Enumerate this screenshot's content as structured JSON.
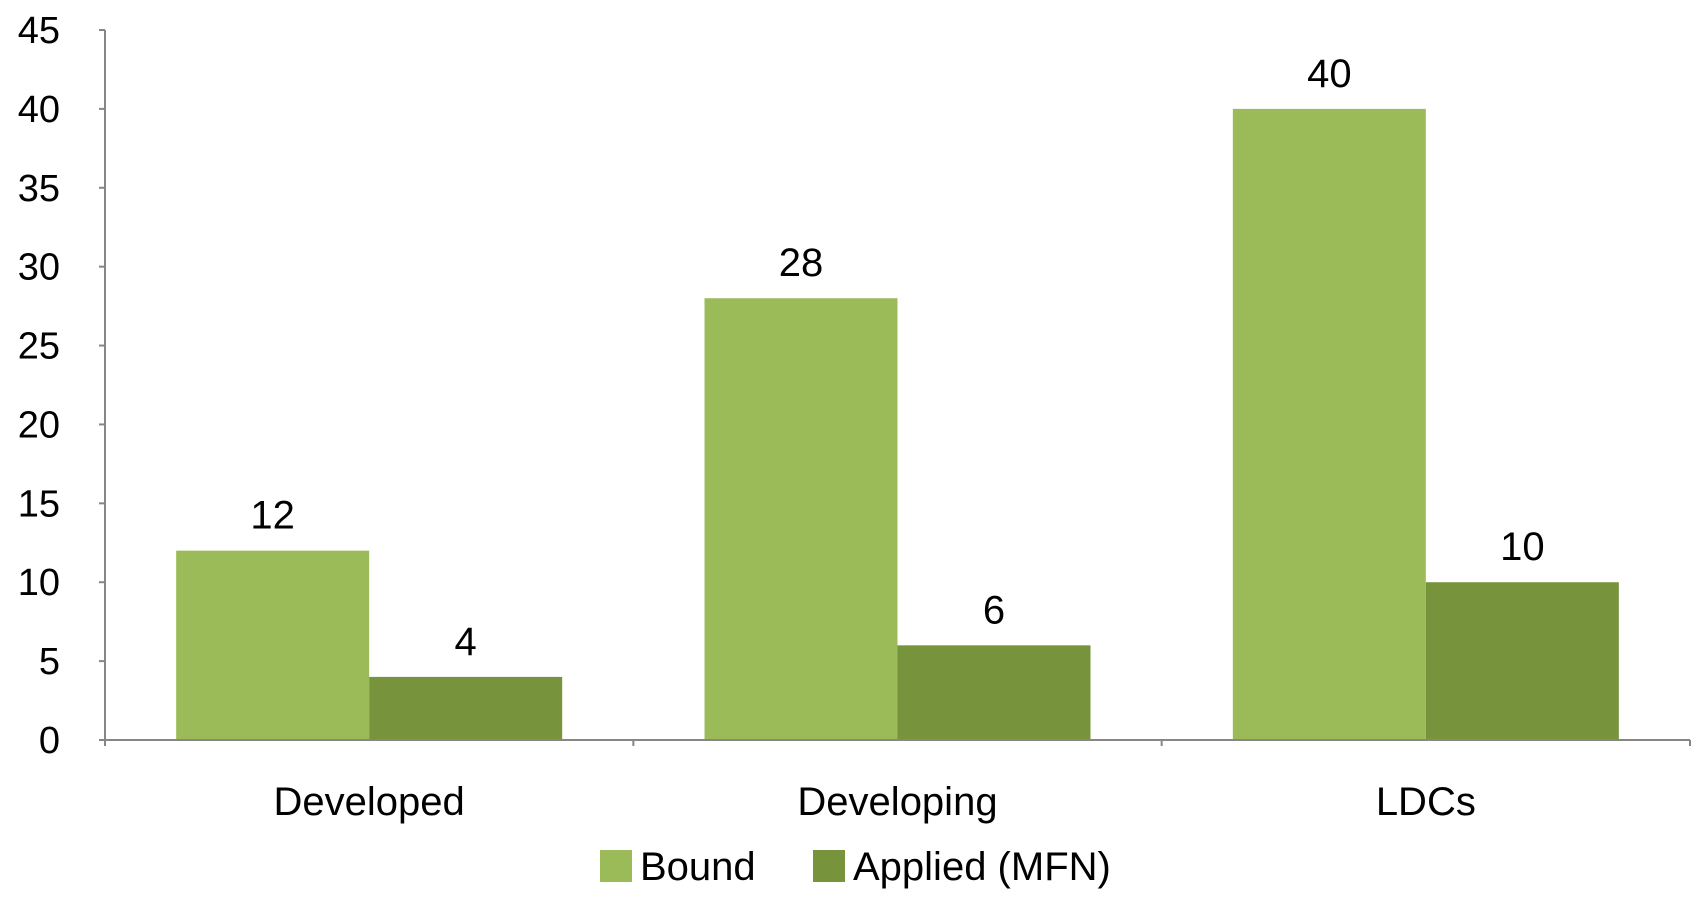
{
  "chart_data": {
    "type": "bar",
    "categories": [
      "Developed",
      "Developing",
      "LDCs"
    ],
    "series": [
      {
        "name": "Bound",
        "values": [
          12,
          28,
          40
        ],
        "color": "#9bbb59"
      },
      {
        "name": "Applied (MFN)",
        "values": [
          4,
          6,
          10
        ],
        "color": "#77933c"
      }
    ],
    "ylim": [
      0,
      45
    ],
    "yticks": [
      0,
      5,
      10,
      15,
      20,
      25,
      30,
      35,
      40,
      45
    ],
    "grid": false,
    "legend": "bottom",
    "data_labels": true
  }
}
